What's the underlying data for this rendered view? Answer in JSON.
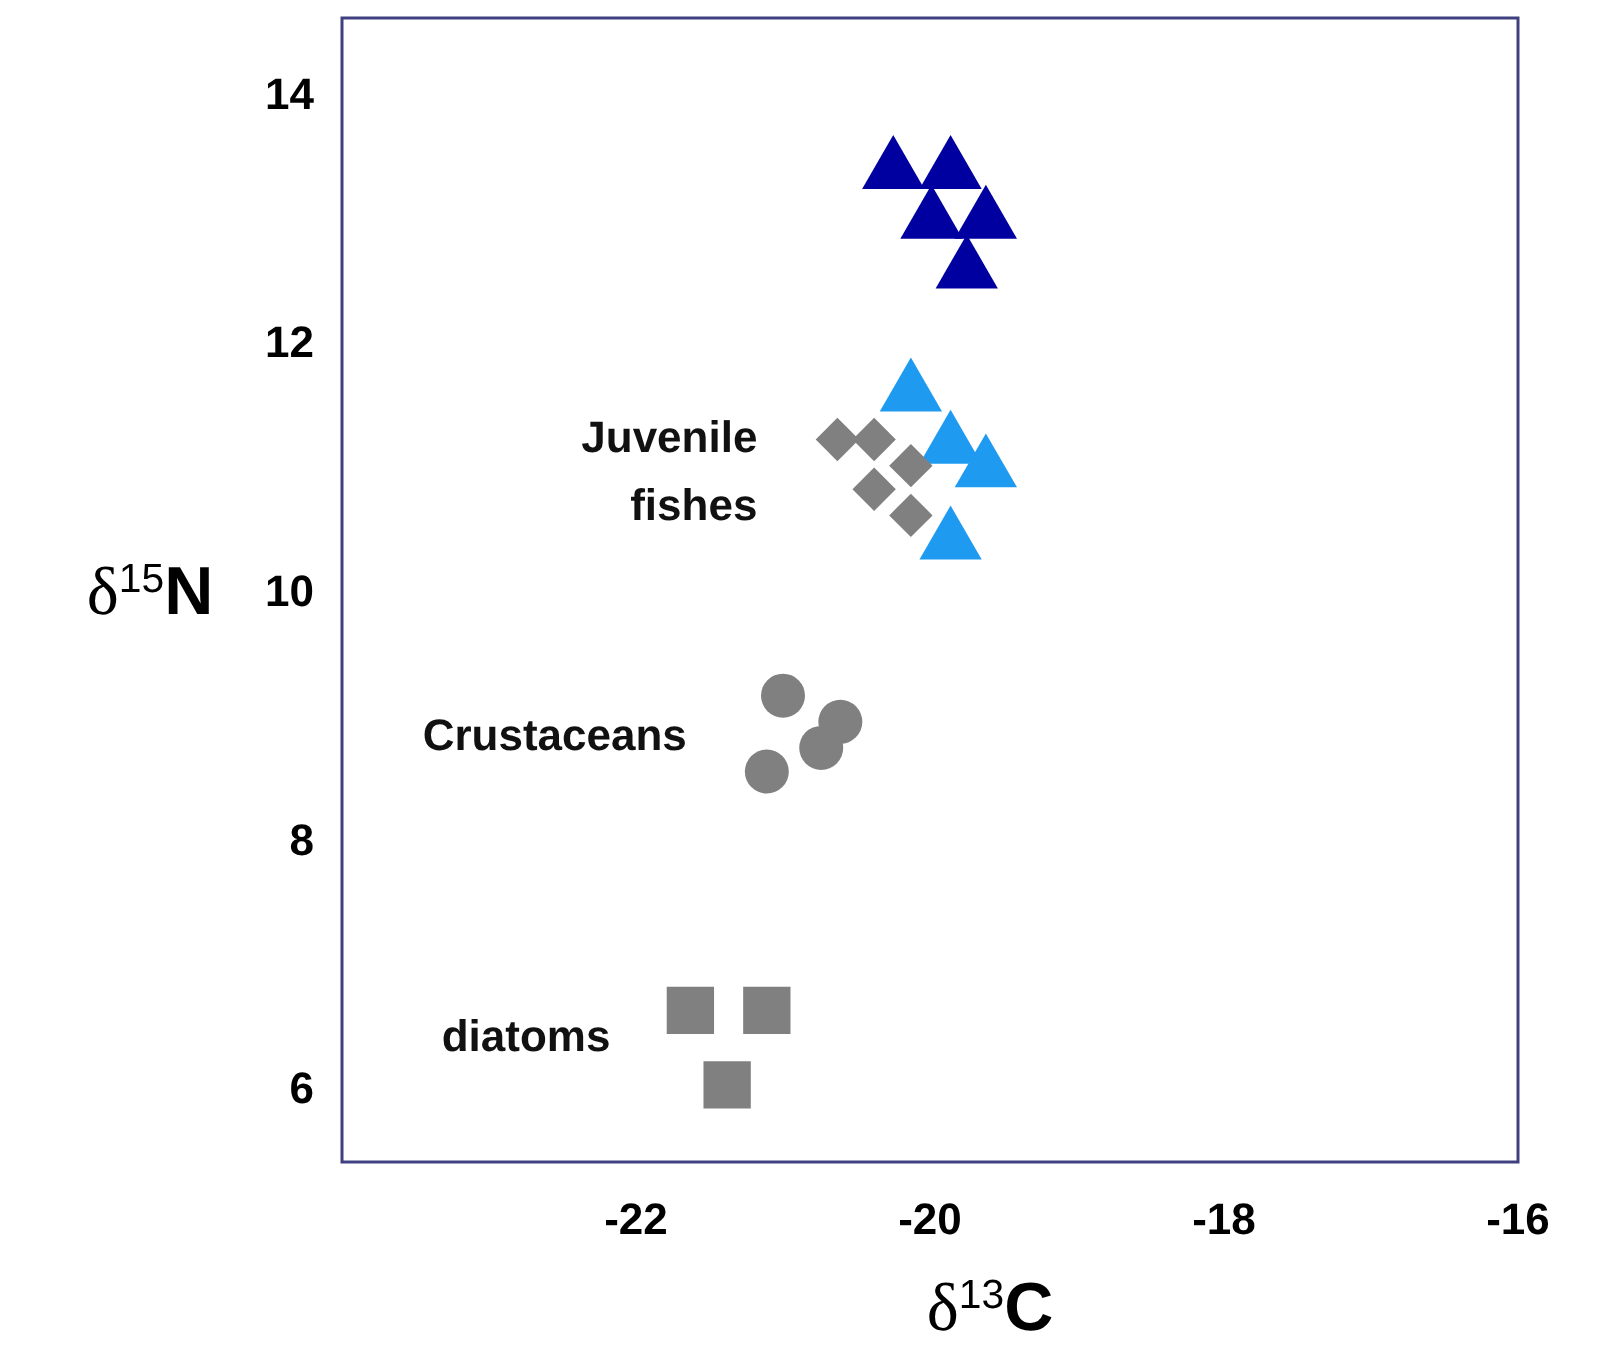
{
  "chart_data": {
    "type": "scatter",
    "xlabel": "δ$^{13}$C",
    "ylabel": "δ$^{15}$N",
    "xlim": [
      -24,
      -16
    ],
    "ylim": [
      5.4,
      14.6
    ],
    "xticks": [
      -22,
      -20,
      -18,
      -16
    ],
    "yticks": [
      6,
      8,
      10,
      12,
      14
    ],
    "grid": false,
    "series": [
      {
        "color": "#0000a0",
        "marker": "triangle",
        "x": [
          -20.25,
          -19.86,
          -19.99,
          -19.62,
          -19.75
        ],
        "values": [
          13.37,
          13.37,
          12.97,
          12.97,
          12.57
        ]
      },
      {
        "color": "#1e9bf0",
        "marker": "triangle",
        "x": [
          -20.13,
          -19.86,
          -19.62,
          -19.86
        ],
        "values": [
          11.58,
          11.16,
          10.97,
          10.39
        ]
      },
      {
        "name": "Juvenile fishes",
        "color": "#808080",
        "marker": "diamond",
        "x": [
          -20.63,
          -20.38,
          -20.13,
          -20.38,
          -20.13
        ],
        "values": [
          11.21,
          11.21,
          11.0,
          10.81,
          10.6
        ]
      },
      {
        "name": "Crustaceans",
        "color": "#808080",
        "marker": "circle",
        "x": [
          -21.0,
          -20.61,
          -20.74,
          -21.11
        ],
        "values": [
          9.15,
          8.94,
          8.73,
          8.54
        ]
      },
      {
        "name": "diatoms",
        "color": "#808080",
        "marker": "square",
        "x": [
          -21.63,
          -21.11,
          -21.38
        ],
        "values": [
          6.62,
          6.62,
          6.02
        ]
      }
    ]
  }
}
